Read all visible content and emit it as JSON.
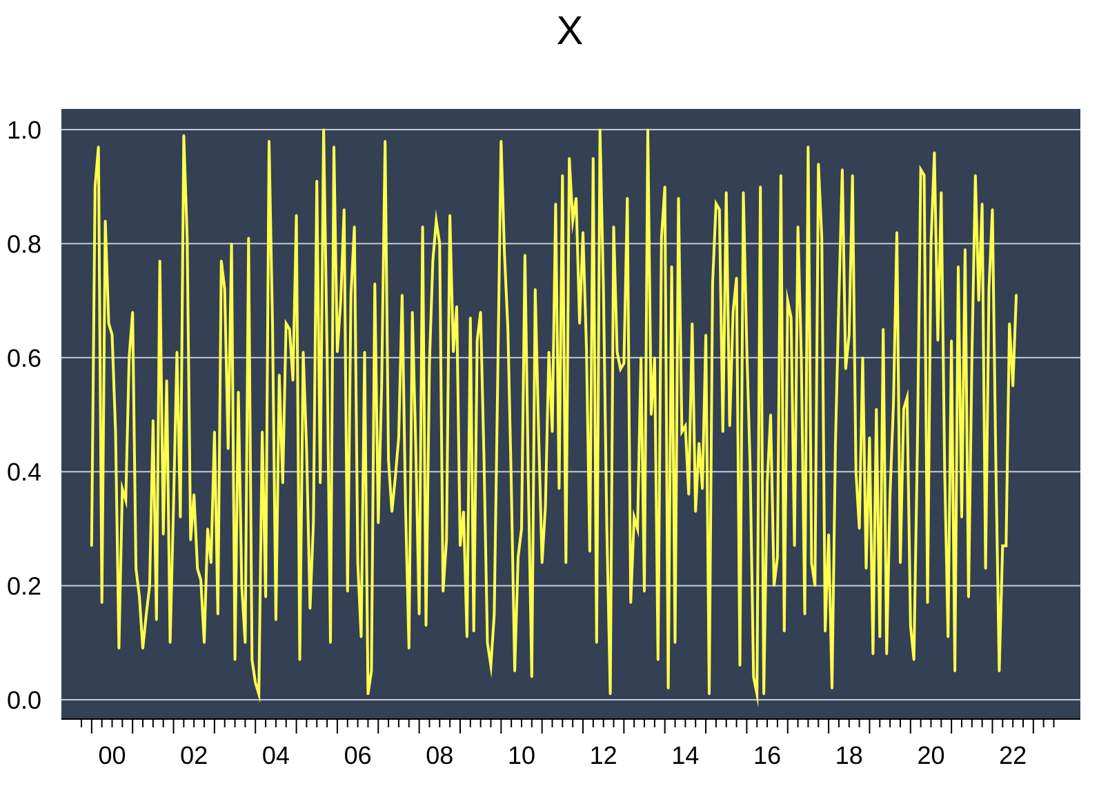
{
  "chart_data": {
    "type": "line",
    "title": "X",
    "xlabel": "",
    "ylabel": "",
    "ylim": [
      0.0,
      1.0
    ],
    "y_ticks": [
      "0.0",
      "0.2",
      "0.4",
      "0.6",
      "0.8",
      "1.0"
    ],
    "x_ticks": [
      "00",
      "02",
      "04",
      "06",
      "08",
      "10",
      "12",
      "14",
      "16",
      "18",
      "20",
      "22"
    ],
    "x_range_years": [
      1999.75,
      2023.66
    ],
    "frequency": "monthly",
    "grid": "horizontal",
    "colors": {
      "plot_background": "#344054",
      "line": "#ffff4d",
      "grid": "#c8ccd6"
    },
    "series": [
      {
        "start": "2000-01",
        "values": [
          0.27,
          0.9,
          0.97,
          0.17,
          0.84,
          0.66,
          0.64,
          0.47,
          0.09,
          0.37,
          0.35,
          0.6,
          0.68,
          0.23,
          0.18,
          0.09,
          0.15,
          0.2,
          0.49,
          0.14,
          0.77,
          0.29,
          0.56,
          0.1,
          0.34,
          0.61,
          0.32,
          0.99,
          0.81,
          0.28,
          0.36,
          0.23,
          0.21,
          0.1,
          0.3,
          0.24,
          0.47,
          0.15,
          0.77,
          0.72,
          0.44,
          0.8,
          0.07,
          0.54,
          0.2,
          0.1,
          0.81,
          0.07,
          0.03,
          0.01,
          0.47,
          0.18,
          0.98,
          0.66,
          0.14,
          0.57,
          0.38,
          0.66,
          0.65,
          0.56,
          0.85,
          0.07,
          0.61,
          0.44,
          0.16,
          0.31,
          0.91,
          0.38,
          1.0,
          0.61,
          0.1,
          0.97,
          0.61,
          0.7,
          0.86,
          0.19,
          0.71,
          0.83,
          0.24,
          0.11,
          0.61,
          0.01,
          0.05,
          0.73,
          0.31,
          0.55,
          0.98,
          0.42,
          0.33,
          0.39,
          0.46,
          0.71,
          0.34,
          0.09,
          0.68,
          0.44,
          0.15,
          0.83,
          0.13,
          0.59,
          0.77,
          0.84,
          0.8,
          0.19,
          0.28,
          0.85,
          0.61,
          0.69,
          0.27,
          0.33,
          0.11,
          0.67,
          0.12,
          0.63,
          0.68,
          0.42,
          0.1,
          0.06,
          0.15,
          0.56,
          0.98,
          0.78,
          0.65,
          0.38,
          0.05,
          0.25,
          0.3,
          0.78,
          0.38,
          0.04,
          0.72,
          0.47,
          0.24,
          0.34,
          0.61,
          0.47,
          0.87,
          0.37,
          0.92,
          0.24,
          0.95,
          0.84,
          0.88,
          0.66,
          0.82,
          0.62,
          0.26,
          0.95,
          0.1,
          1.0,
          0.72,
          0.3,
          0.01,
          0.83,
          0.61,
          0.58,
          0.59,
          0.88,
          0.17,
          0.32,
          0.3,
          0.6,
          0.19,
          1.0,
          0.5,
          0.6,
          0.07,
          0.81,
          0.9,
          0.02,
          0.76,
          0.1,
          0.88,
          0.47,
          0.48,
          0.36,
          0.66,
          0.33,
          0.45,
          0.37,
          0.64,
          0.01,
          0.73,
          0.87,
          0.86,
          0.47,
          0.89,
          0.48,
          0.68,
          0.74,
          0.06,
          0.89,
          0.62,
          0.41,
          0.04,
          0.01,
          0.9,
          0.01,
          0.38,
          0.5,
          0.2,
          0.25,
          0.92,
          0.12,
          0.7,
          0.67,
          0.27,
          0.83,
          0.6,
          0.15,
          0.97,
          0.24,
          0.2,
          0.94,
          0.81,
          0.12,
          0.29,
          0.02,
          0.45,
          0.7,
          0.93,
          0.58,
          0.64,
          0.92,
          0.4,
          0.3,
          0.6,
          0.23,
          0.46,
          0.08,
          0.51,
          0.11,
          0.65,
          0.08,
          0.36,
          0.52,
          0.82,
          0.24,
          0.51,
          0.53,
          0.13,
          0.07,
          0.44,
          0.93,
          0.92,
          0.17,
          0.8,
          0.96,
          0.63,
          0.89,
          0.41,
          0.11,
          0.63,
          0.05,
          0.76,
          0.32,
          0.79,
          0.18,
          0.6,
          0.92,
          0.7,
          0.87,
          0.23,
          0.72,
          0.86,
          0.42,
          0.05,
          0.27,
          0.27,
          0.66,
          0.55,
          0.71
        ]
      }
    ]
  }
}
